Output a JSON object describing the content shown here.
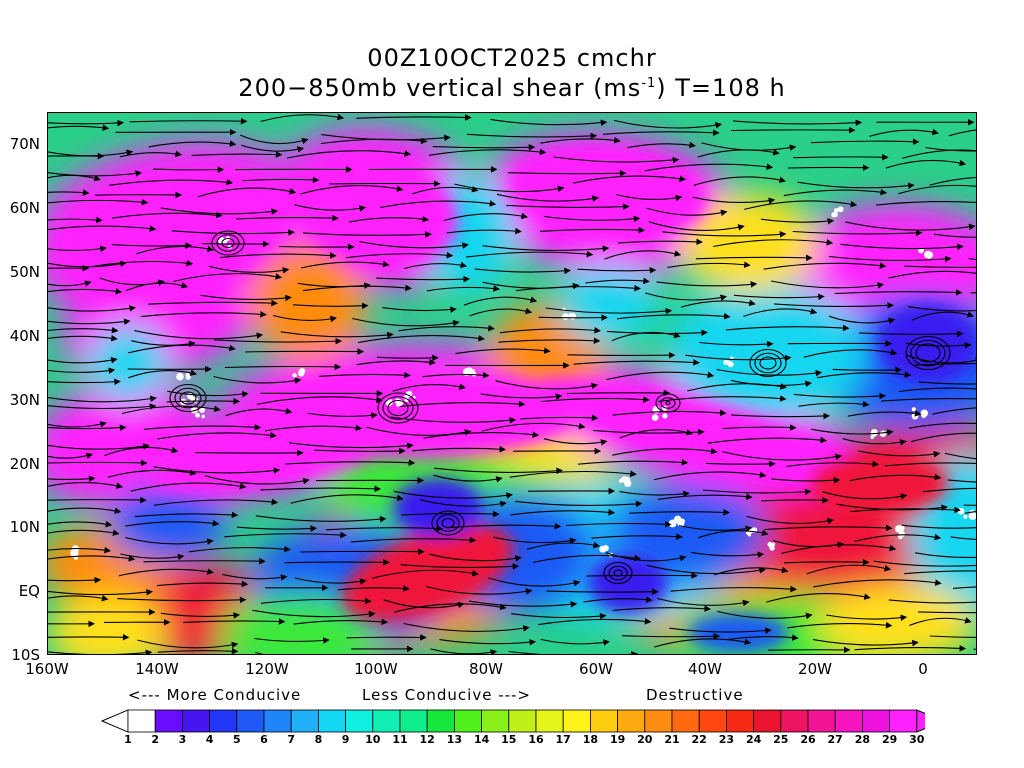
{
  "title_line1": "00Z10OCT2025 cmchr",
  "title_line2_prefix": "200−850mb vertical shear (ms",
  "title_line2_sup": "-1",
  "title_line2_suffix": ") T=108 h",
  "lat_labels": [
    "70N",
    "60N",
    "50N",
    "40N",
    "30N",
    "20N",
    "10N",
    "EQ",
    "10S"
  ],
  "lon_labels": [
    "160W",
    "140W",
    "120W",
    "100W",
    "80W",
    "60W",
    "40W",
    "20W",
    "0"
  ],
  "legend": {
    "more_conducive": "<--- More Conducive",
    "less_conducive": "Less Conducive --->",
    "destructive": "Destructive"
  },
  "colorbar": {
    "labels": [
      "1",
      "2",
      "3",
      "4",
      "5",
      "6",
      "7",
      "8",
      "9",
      "10",
      "11",
      "12",
      "13",
      "14",
      "15",
      "16",
      "17",
      "18",
      "19",
      "20",
      "21",
      "22",
      "23",
      "24",
      "25",
      "26",
      "27",
      "28",
      "29",
      "30"
    ],
    "colors": [
      "#ffffff",
      "#6a0dff",
      "#4616f2",
      "#2236f5",
      "#1f5af5",
      "#1f84f7",
      "#1fb0f7",
      "#14d6f5",
      "#11f0e0",
      "#10f0b4",
      "#10ee8c",
      "#18e83c",
      "#50f01c",
      "#8af01a",
      "#bff01a",
      "#e6f51a",
      "#fff31a",
      "#ffcc12",
      "#ffaa10",
      "#ff8c10",
      "#ff6a10",
      "#ff4810",
      "#f52a14",
      "#ea1430",
      "#ee1464",
      "#f21496",
      "#f514c0",
      "#ee12e0",
      "#ff22ff"
    ]
  },
  "map": {
    "region": "160W-10E, 10S-75N",
    "field": "200-850mb vertical shear",
    "units": "ms-1"
  }
}
